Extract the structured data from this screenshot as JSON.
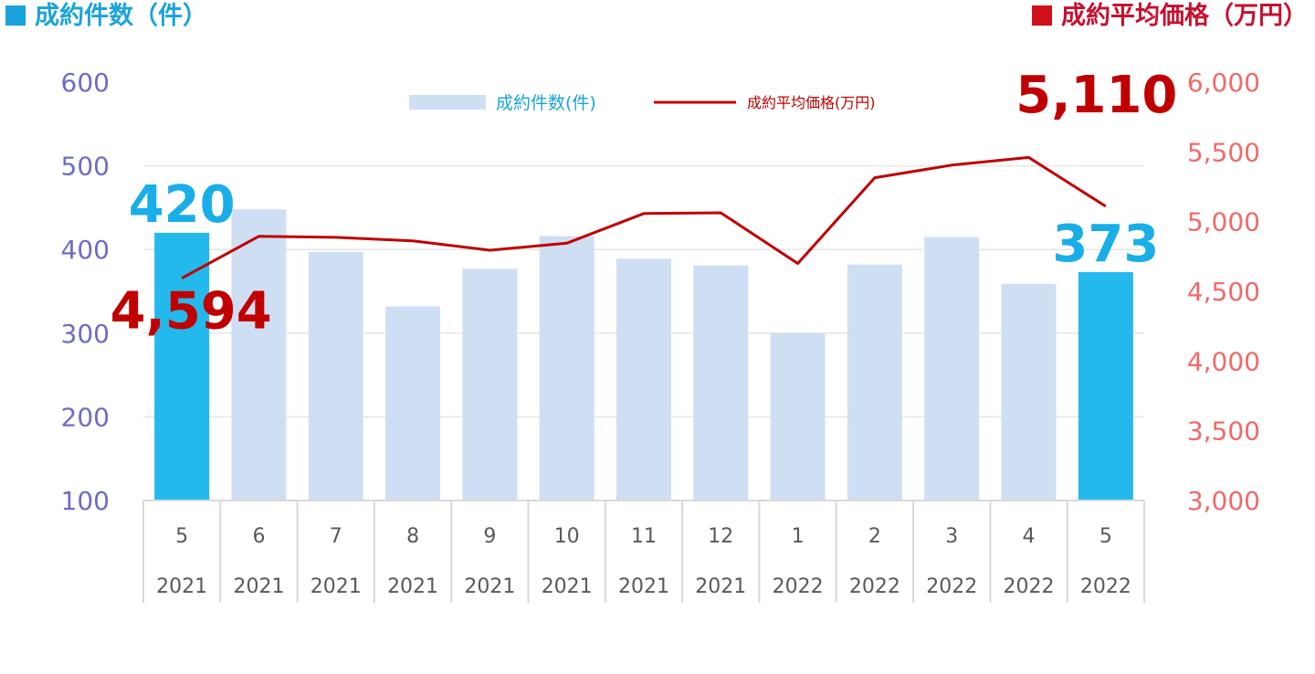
{
  "header": {
    "left_title": "成約件数（件）",
    "right_title": "成約平均価格（万円）"
  },
  "colors": {
    "bar": "#cfdff3",
    "bar_highlight": "#24b9ec",
    "line": "#c00000",
    "left_axis": "#6e6cc4",
    "right_axis": "#f06a6a",
    "left_title": "#1aa3dc",
    "right_title": "#c8102e"
  },
  "chart_data": {
    "type": "bar",
    "categories": [
      {
        "month": "5",
        "year": "2021"
      },
      {
        "month": "6",
        "year": "2021"
      },
      {
        "month": "7",
        "year": "2021"
      },
      {
        "month": "8",
        "year": "2021"
      },
      {
        "month": "9",
        "year": "2021"
      },
      {
        "month": "10",
        "year": "2021"
      },
      {
        "month": "11",
        "year": "2021"
      },
      {
        "month": "12",
        "year": "2021"
      },
      {
        "month": "1",
        "year": "2022"
      },
      {
        "month": "2",
        "year": "2022"
      },
      {
        "month": "3",
        "year": "2022"
      },
      {
        "month": "4",
        "year": "2022"
      },
      {
        "month": "5",
        "year": "2022"
      }
    ],
    "series": [
      {
        "name": "成約件数(件)",
        "type": "bar",
        "axis": "left",
        "values": [
          420,
          448,
          397,
          332,
          377,
          416,
          389,
          381,
          300,
          382,
          415,
          359,
          373
        ],
        "highlight_indices": [
          0,
          12
        ]
      },
      {
        "name": "成約平均価格(万円)",
        "type": "line",
        "axis": "right",
        "values": [
          4594,
          4895,
          4887,
          4862,
          4795,
          4845,
          5058,
          5063,
          4700,
          5315,
          5405,
          5460,
          5110
        ]
      }
    ],
    "left_axis": {
      "ylim": [
        100,
        600
      ],
      "ticks": [
        "100",
        "200",
        "300",
        "400",
        "500",
        "600"
      ]
    },
    "right_axis": {
      "ylim": [
        3000,
        6000
      ],
      "ticks": [
        "3,000",
        "3,500",
        "4,000",
        "4,500",
        "5,000",
        "5,500",
        "6,000"
      ]
    },
    "legend_position": "top-center",
    "grid": true,
    "annotations": [
      {
        "series": 0,
        "index": 0,
        "text": "420"
      },
      {
        "series": 0,
        "index": 12,
        "text": "373"
      },
      {
        "series": 1,
        "index": 0,
        "text": "4,594"
      },
      {
        "series": 1,
        "index": 12,
        "text": "5,110"
      }
    ]
  }
}
